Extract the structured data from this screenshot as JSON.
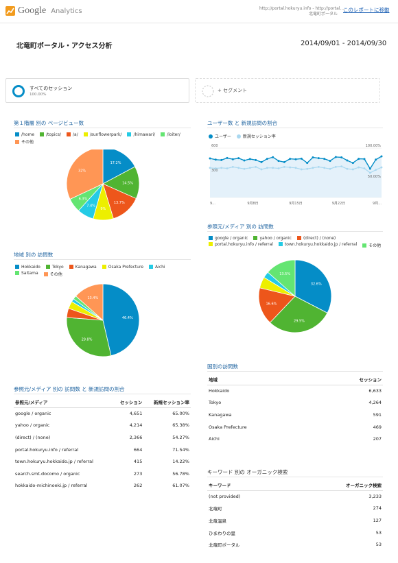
{
  "header": {
    "logo_google": "Google",
    "logo_analytics": "Analytics",
    "url_line1": "http://portal.hokuryu.info - http://portal....",
    "url_line2": "北竜町ポータル",
    "move_link": "このレポートに移動"
  },
  "report": {
    "title": "北竜町ポータル・アクセス分析",
    "date_range": "2014/09/01 - 2014/09/30"
  },
  "segments": {
    "all_label": "すべてのセッション",
    "all_pct": "100.00%",
    "add_label": "+ セグメント"
  },
  "colors": {
    "blue": "#058dc7",
    "green": "#50b432",
    "orange": "#ed561b",
    "yellow": "#edef00",
    "cyan": "#24cbe5",
    "mint": "#64e572",
    "salmon": "#ff9655"
  },
  "chart_data": [
    {
      "type": "pie",
      "title": "第１階層 別の ページビュー数",
      "categories": [
        "/home",
        "/topics/",
        "/a/",
        "/sunflowerpark/",
        "/himawari/",
        "/loiter/",
        "その他"
      ],
      "values": [
        17.2,
        14.5,
        13.7,
        9,
        7.4,
        6.3,
        32
      ],
      "labels": [
        "17.2%",
        "14.5%",
        "13.7%",
        "9%",
        "7.4%",
        "6.3%",
        "32%"
      ]
    },
    {
      "type": "line",
      "title": "ユーザー数 と 新規訪問の割合",
      "series": [
        {
          "name": "ユーザー",
          "values": [
            475,
            460,
            455,
            480,
            465,
            478,
            450,
            468,
            455,
            430,
            470,
            490,
            445,
            430,
            470,
            465,
            472,
            420,
            488,
            478,
            470,
            445,
            492,
            488,
            450,
            420,
            470,
            468,
            350,
            460,
            500
          ]
        },
        {
          "name": "新規セッション率",
          "values": [
            60,
            59,
            60,
            59,
            62,
            60,
            58,
            60,
            62,
            57,
            60,
            60,
            59,
            62,
            61,
            60,
            57,
            58,
            60,
            62,
            60,
            58,
            62,
            63,
            58,
            57,
            61,
            59,
            50,
            56,
            61
          ]
        }
      ],
      "x_tick_labels": [
        "9...",
        "9月8日",
        "9月15日",
        "9月22日",
        "9月..."
      ],
      "y_left_ticks": [
        "600",
        "300"
      ],
      "y_right_ticks": [
        "100.00%",
        "50.00%"
      ],
      "ylim": [
        0,
        600
      ],
      "y2lim": [
        0,
        100
      ]
    },
    {
      "type": "pie",
      "title": "地域 別の 訪問数",
      "categories": [
        "Hokkaido",
        "Tokyo",
        "Kanagawa",
        "Osaka Prefecture",
        "Aichi",
        "Saitama",
        "その他"
      ],
      "values": [
        46.4,
        29.8,
        4.1,
        3.3,
        1.4,
        1.6,
        13.4
      ],
      "labels": [
        "46.4%",
        "29.8%",
        "",
        "",
        "",
        "",
        "13.4%"
      ]
    },
    {
      "type": "pie",
      "title": "参照元/メディア 別の 訪問数",
      "categories": [
        "google / organic",
        "yahoo / organic",
        "(direct) / (none)",
        "portal.hokuryu.info / referral",
        "town.hokuryu.hokkaido.jp / referral",
        "その他"
      ],
      "values": [
        32.6,
        29.5,
        16.6,
        5.0,
        2.8,
        13.5
      ],
      "labels": [
        "32.6%",
        "29.5%",
        "16.6%",
        "",
        "",
        "13.5%"
      ]
    }
  ],
  "sources_table": {
    "title": "参照元/メディア 別の 訪問数 と 新規訪問の割合",
    "headers": [
      "参照元/メディア",
      "セッション",
      "新規セッション率"
    ],
    "rows": [
      [
        "google / organic",
        "4,651",
        "65.00%"
      ],
      [
        "yahoo / organic",
        "4,214",
        "65.38%"
      ],
      [
        "(direct) / (none)",
        "2,366",
        "54.27%"
      ],
      [
        "portal.hokuryu.info / referral",
        "664",
        "71.54%"
      ],
      [
        "town.hokuryu.hokkaido.jp / referral",
        "415",
        "14.22%"
      ],
      [
        "search.smt.docomo / organic",
        "273",
        "56.78%"
      ],
      [
        "hokkaido-michinoeki.jp / referral",
        "262",
        "61.07%"
      ]
    ]
  },
  "country_table": {
    "title": "国別の訪問数",
    "headers": [
      "地域",
      "セッション"
    ],
    "rows": [
      [
        "Hokkaido",
        "6,633"
      ],
      [
        "Tokyo",
        "4,264"
      ],
      [
        "Kanagawa",
        "591"
      ],
      [
        "Osaka Prefecture",
        "469"
      ],
      [
        "Aichi",
        "207"
      ]
    ]
  },
  "keyword_table": {
    "title": "キーワード 別の オーガニック検索",
    "headers": [
      "キーワード",
      "オーガニック検索"
    ],
    "rows": [
      [
        "(not provided)",
        "3,233"
      ],
      [
        "北竜町",
        "274"
      ],
      [
        "北竜温泉",
        "127"
      ],
      [
        "ひまわりの里",
        "53"
      ],
      [
        "北竜町ポータル",
        "53"
      ]
    ]
  }
}
